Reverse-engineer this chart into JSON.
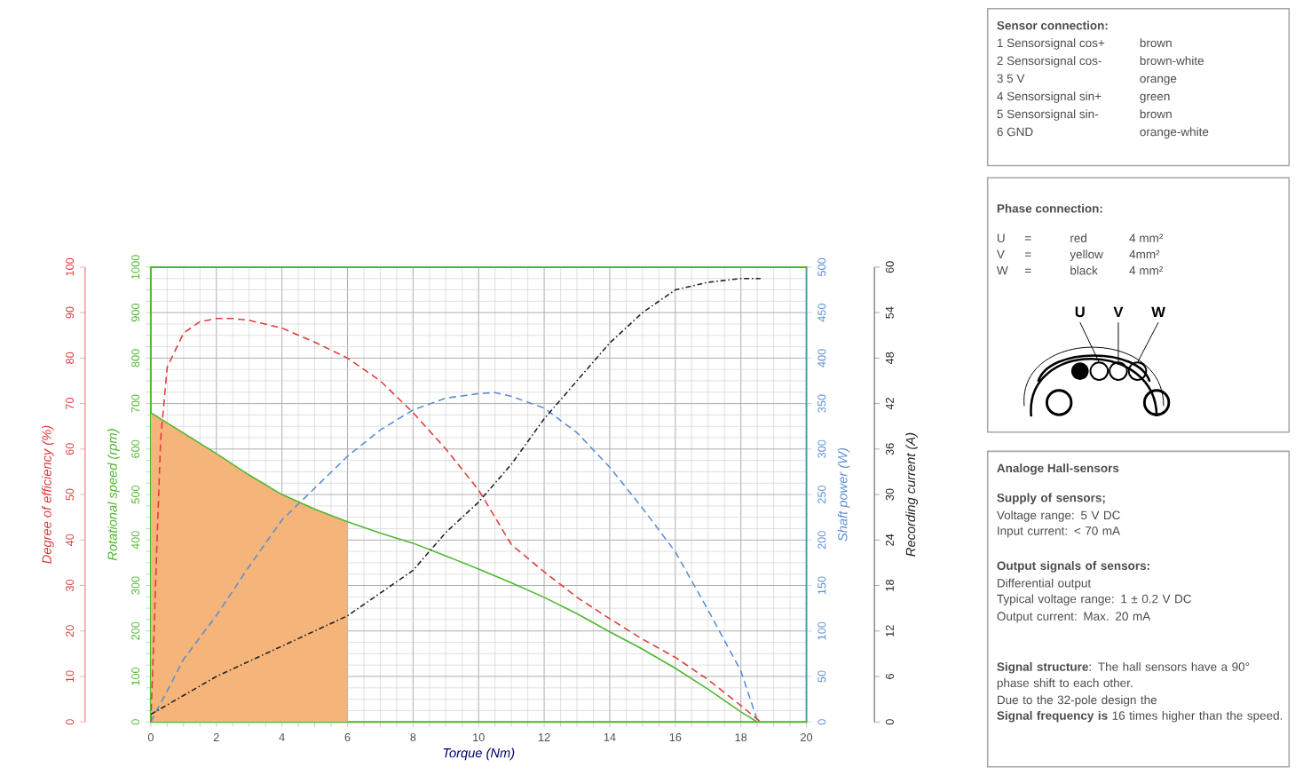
{
  "chart_data": [
    {
      "type": "line",
      "xlabel": "Torque (Nm)",
      "ylabel": "Rotational speed (rpm)",
      "y2label": "Shaft power (W)",
      "xlim": [
        0,
        20
      ],
      "xticks": [
        0,
        2,
        4,
        6,
        8,
        10,
        12,
        14,
        16,
        18,
        20
      ],
      "ylim": [
        0,
        1000
      ],
      "yticks": [
        0,
        100,
        200,
        300,
        400,
        500,
        600,
        700,
        800,
        900,
        1000
      ],
      "y2lim": [
        0,
        500
      ],
      "y2ticks": [
        0,
        50,
        100,
        150,
        200,
        250,
        300,
        350,
        400,
        450,
        500
      ],
      "grid": true,
      "series": [
        {
          "type": "area",
          "color": "#f5b47a",
          "x": [
            0,
            1,
            2,
            3,
            4,
            5,
            6
          ],
          "values": [
            680,
            635,
            590,
            543,
            500,
            468,
            440
          ]
        },
        {
          "type": "line",
          "color": "#4db82e",
          "line_style": "solid",
          "x": [
            0,
            1,
            2,
            3,
            4,
            5,
            6,
            7,
            8,
            9,
            10,
            11,
            12,
            13,
            14,
            15,
            16,
            17,
            18,
            18.5
          ],
          "values": [
            680,
            635,
            590,
            543,
            500,
            468,
            440,
            415,
            393,
            365,
            336,
            306,
            274,
            238,
            198,
            160,
            118,
            72,
            22,
            0
          ]
        },
        {
          "type": "line",
          "axis": "y2",
          "color": "#5b8fd0",
          "line_style": "dashed",
          "x": [
            0,
            0.2,
            0.5,
            1,
            2,
            3,
            4,
            5,
            6,
            7,
            8,
            9,
            10,
            10.5,
            11,
            12,
            13,
            14,
            15,
            16,
            17,
            18,
            18.5
          ],
          "values": [
            0,
            14,
            34,
            69,
            117,
            171,
            222,
            257,
            292,
            321,
            343,
            356,
            361,
            362,
            358,
            345,
            318,
            280,
            235,
            187,
            123,
            56,
            2
          ]
        }
      ]
    },
    {
      "type": "line",
      "ylabel": "Degree of efficiency (%)",
      "y2label": "Recording current (A)",
      "xlim": [
        0,
        20
      ],
      "ylim": [
        0,
        100
      ],
      "yticks": [
        0,
        10,
        20,
        30,
        40,
        50,
        60,
        70,
        80,
        90,
        100
      ],
      "y2lim": [
        0,
        60
      ],
      "y2ticks": [
        0,
        6,
        12,
        18,
        24,
        30,
        36,
        42,
        48,
        54,
        60
      ],
      "tick_labels": "y",
      "series": [
        {
          "type": "line",
          "color": "#e03a3a",
          "line_style": "dashed",
          "x": [
            0,
            0.1,
            0.2,
            0.3,
            0.5,
            1,
            1.5,
            2,
            2.5,
            3,
            4,
            5,
            6,
            7,
            8,
            9,
            10,
            11,
            12,
            13,
            14,
            15,
            16,
            17,
            18,
            18.6
          ],
          "values": [
            0,
            20,
            42,
            62,
            78,
            85.5,
            88,
            88.7,
            88.7,
            88.3,
            86.6,
            83.5,
            80,
            75,
            68,
            60,
            51,
            39,
            33,
            27.4,
            22.7,
            18.2,
            14.2,
            9.3,
            3.6,
            0
          ]
        },
        {
          "type": "line",
          "axis": "y2",
          "color": "#222222",
          "line_style": "dashdot",
          "x": [
            0,
            2,
            4,
            6,
            7,
            8,
            9,
            10,
            11,
            12,
            13,
            14,
            15,
            16,
            17,
            18,
            18.6
          ],
          "values": [
            1,
            6,
            10,
            14,
            17,
            20,
            25,
            29,
            34,
            40,
            45,
            50,
            54,
            57,
            58,
            58.5,
            58.5
          ]
        }
      ]
    },
    {
      "type": "other",
      "title": "Sensor connection:",
      "annotations": [
        "1  Sensorsignal  cos+",
        "brown",
        "2  Sensorsignal  cos-",
        "brown-white",
        "3  5 V",
        "orange",
        "4  Sensorsignal  sin+",
        "green",
        "5  Sensorsignal  sin-",
        "brown",
        "6  GND",
        "orange-white"
      ]
    },
    {
      "type": "other",
      "title": "Phase connection:",
      "annotations": [
        "U",
        "=",
        "red",
        "4 mm²",
        "V",
        "=",
        "yellow",
        "4mm²",
        "W",
        "=",
        "black",
        "4 mm²",
        "U",
        "V",
        "W"
      ]
    },
    {
      "type": "other",
      "title": "Analoge Hall-sensors",
      "annotations": [
        "**Supply of sensors;**",
        "Voltage range: 5 V DC",
        "Input current: < 70 mA",
        "**Output signals of sensors:**",
        "Differential output",
        "Typical voltage range: 1 ± 0.2 V DC",
        "Output current: Max. 20 mA",
        "**Signal structure**: The hall sensors have a 90° phase shift to each other.",
        "Due to the 32-pole design the",
        "**Signal frequency is** 16 times higher than the speed."
      ]
    }
  ]
}
